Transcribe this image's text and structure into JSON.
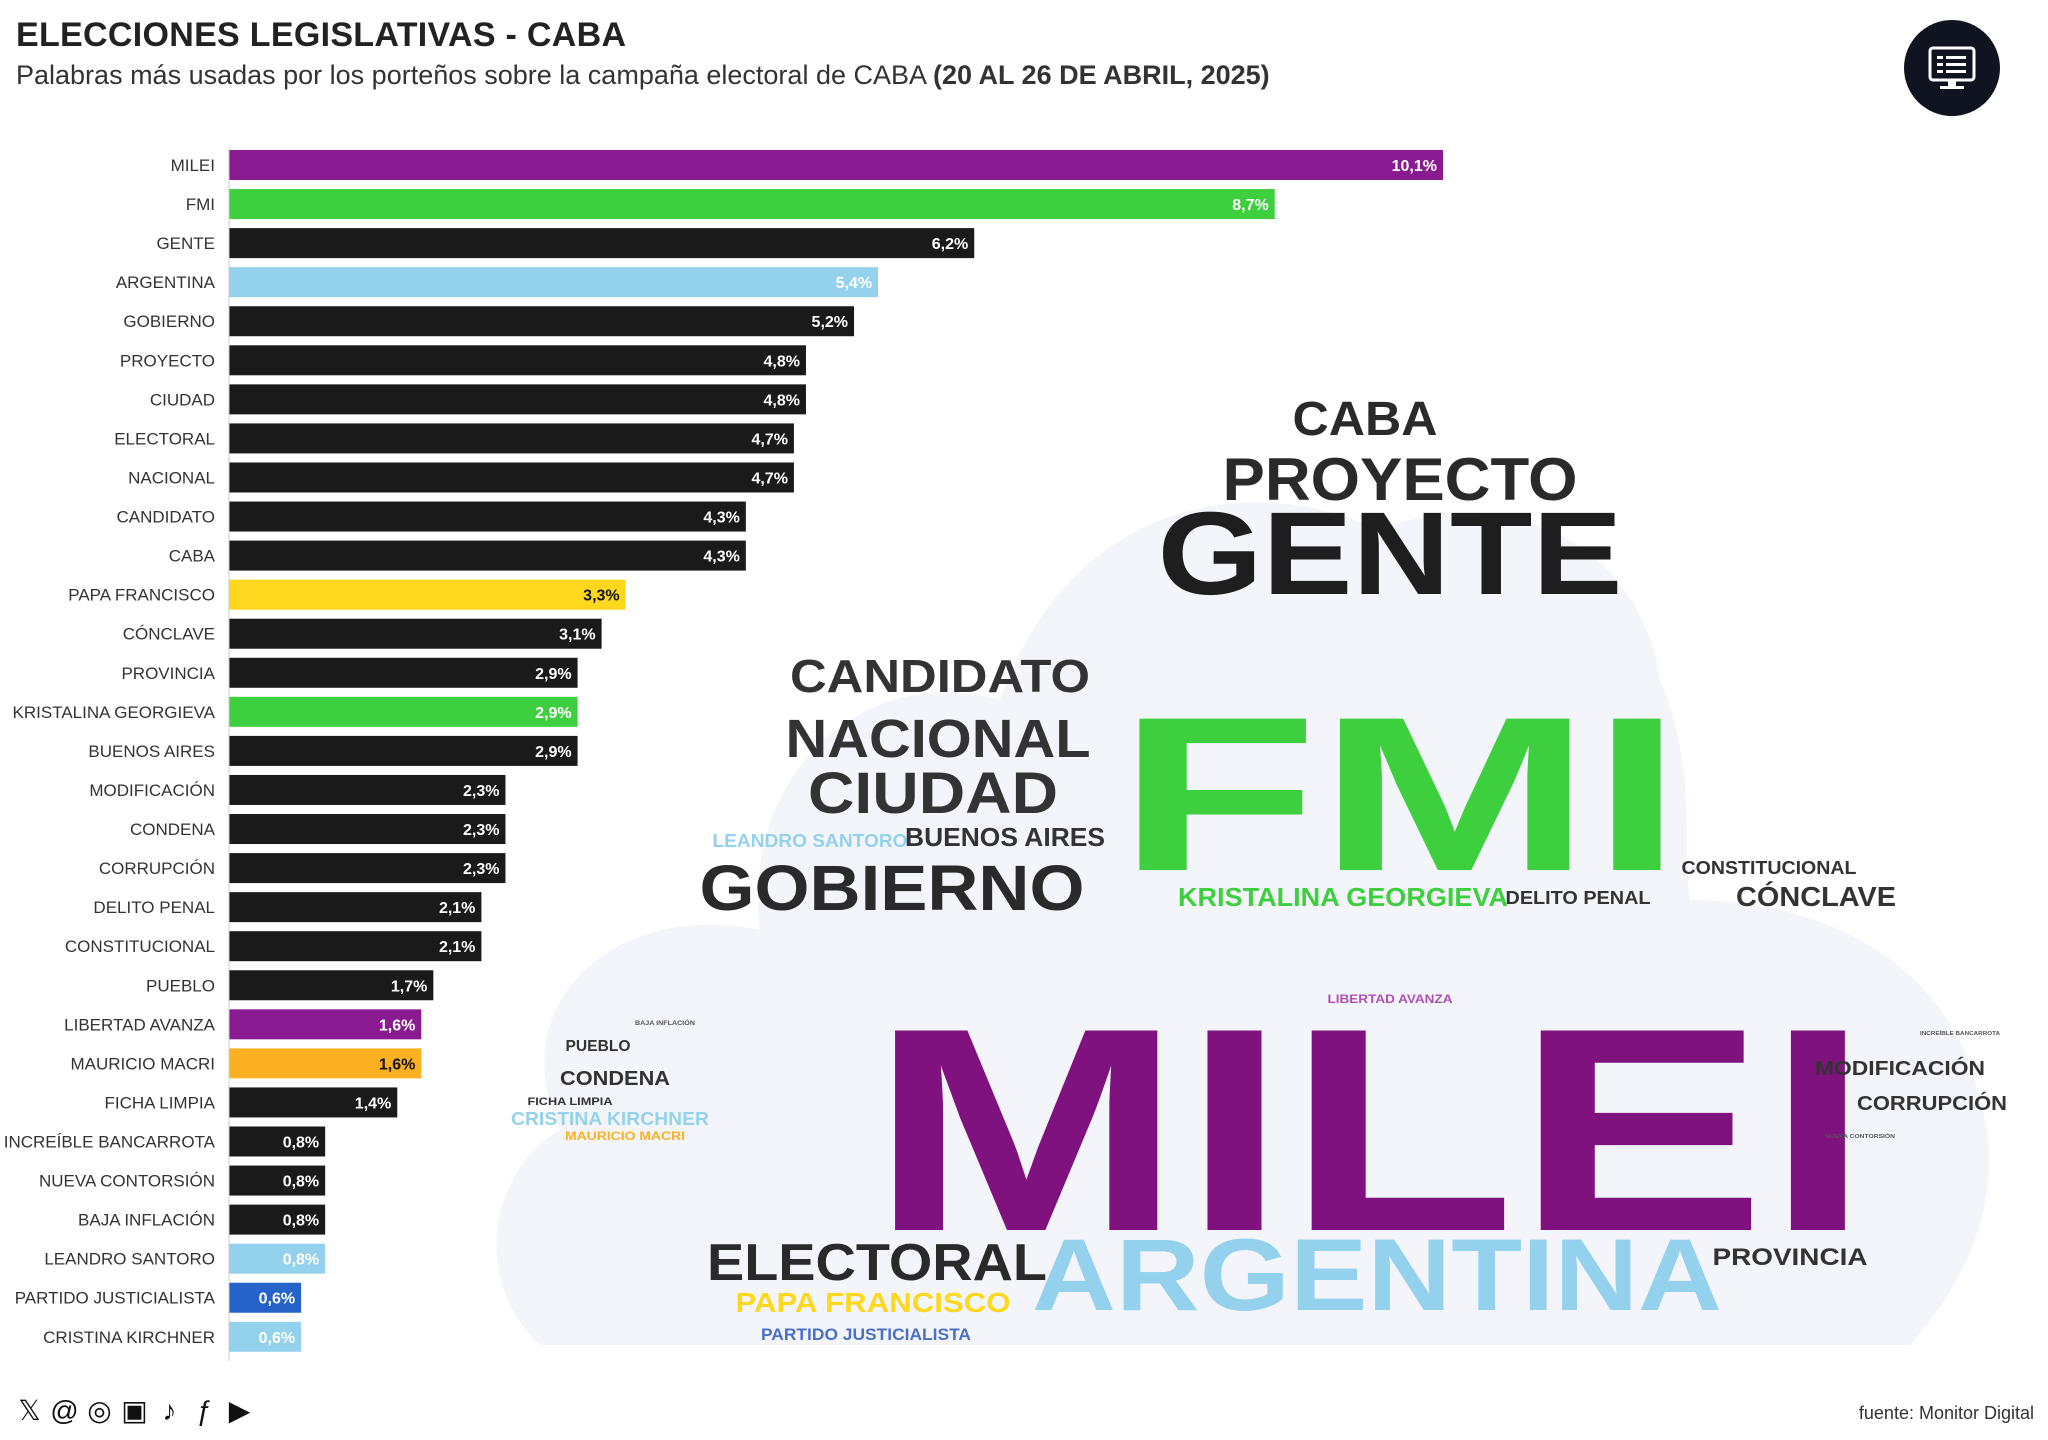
{
  "header": {
    "title": "ELECCIONES LEGISLATIVAS - CABA",
    "subtitle": "Palabras más usadas por los porteños sobre la campaña electoral de CABA",
    "subtitle_bold": "(20 AL 26 DE ABRIL, 2025)"
  },
  "logo": {
    "icon": "monitor-icon"
  },
  "footer": {
    "icons": [
      "x-icon",
      "threads-icon",
      "instagram-icon",
      "news-icon",
      "tiktok-icon",
      "facebook-icon",
      "youtube-icon"
    ],
    "source": "fuente: Monitor Digital"
  },
  "colors": {
    "purple": "#8a1a8f",
    "green": "#3ecf3e",
    "black": "#1a1a1a",
    "lightblue": "#93d1ec",
    "yellow": "#fdd81e",
    "orange": "#fbb022",
    "blue": "#2563c8"
  },
  "chart_data": {
    "type": "bar",
    "orientation": "horizontal",
    "categories": [
      "MILEI",
      "FMI",
      "GENTE",
      "ARGENTINA",
      "GOBIERNO",
      "PROYECTO",
      "CIUDAD",
      "ELECTORAL",
      "NACIONAL",
      "CANDIDATO",
      "CABA",
      "PAPA FRANCISCO",
      "CÓNCLAVE",
      "PROVINCIA",
      "KRISTALINA GEORGIEVA",
      "BUENOS AIRES",
      "MODIFICACIÓN",
      "CONDENA",
      "CORRUPCIÓN",
      "DELITO PENAL",
      "CONSTITUCIONAL",
      "PUEBLO",
      "LIBERTAD AVANZA",
      "MAURICIO MACRI",
      "FICHA LIMPIA",
      "INCREÍBLE BANCARROTA",
      "NUEVA CONTORSIÓN",
      "BAJA INFLACIÓN",
      "LEANDRO SANTORO",
      "PARTIDO JUSTICIALISTA",
      "CRISTINA KIRCHNER"
    ],
    "values": [
      10.1,
      8.7,
      6.2,
      5.4,
      5.2,
      4.8,
      4.8,
      4.7,
      4.7,
      4.3,
      4.3,
      3.3,
      3.1,
      2.9,
      2.9,
      2.9,
      2.3,
      2.3,
      2.3,
      2.1,
      2.1,
      1.7,
      1.6,
      1.6,
      1.4,
      0.8,
      0.8,
      0.8,
      0.8,
      0.6,
      0.6
    ],
    "labels": [
      "10,1%",
      "8,7%",
      "6,2%",
      "5,4%",
      "5,2%",
      "4,8%",
      "4,8%",
      "4,7%",
      "4,7%",
      "4,3%",
      "4,3%",
      "3,3%",
      "3,1%",
      "2,9%",
      "2,9%",
      "2,9%",
      "2,3%",
      "2,3%",
      "2,3%",
      "2,1%",
      "2,1%",
      "1,7%",
      "1,6%",
      "1,6%",
      "1,4%",
      "0,8%",
      "0,8%",
      "0,8%",
      "0,8%",
      "0,6%",
      "0,6%"
    ],
    "bar_colors": [
      "purple",
      "green",
      "black",
      "lightblue",
      "black",
      "black",
      "black",
      "black",
      "black",
      "black",
      "black",
      "yellow",
      "black",
      "black",
      "green",
      "black",
      "black",
      "black",
      "black",
      "black",
      "black",
      "black",
      "purple",
      "orange",
      "black",
      "black",
      "black",
      "black",
      "lightblue",
      "blue",
      "lightblue"
    ],
    "xlim": [
      0,
      10.1
    ]
  },
  "word_cloud": [
    {
      "text": "CABA",
      "color": "#2a2a2a"
    },
    {
      "text": "PROYECTO",
      "color": "#2a2a2a"
    },
    {
      "text": "GENTE",
      "color": "#1e1e1e"
    },
    {
      "text": "CANDIDATO",
      "color": "#333333"
    },
    {
      "text": "NACIONAL",
      "color": "#333333"
    },
    {
      "text": "CIUDAD",
      "color": "#333333"
    },
    {
      "text": "FMI",
      "color": "#3ecf3e"
    },
    {
      "text": "LEANDRO SANTORO",
      "color": "#93d1ec"
    },
    {
      "text": "BUENOS AIRES",
      "color": "#333333"
    },
    {
      "text": "GOBIERNO",
      "color": "#2a2a2a"
    },
    {
      "text": "CONSTITUCIONAL",
      "color": "#333333"
    },
    {
      "text": "KRISTALINA GEORGIEVA",
      "color": "#3ecf3e"
    },
    {
      "text": "DELITO PENAL",
      "color": "#333333"
    },
    {
      "text": "CÓNCLAVE",
      "color": "#333333"
    },
    {
      "text": "MILEI",
      "color": "#80127f"
    },
    {
      "text": "LIBERTAD AVANZA",
      "color": "#b050b0"
    },
    {
      "text": "BAJA INFLACIÓN",
      "color": "#555555"
    },
    {
      "text": "PUEBLO",
      "color": "#333333"
    },
    {
      "text": "CONDENA",
      "color": "#333333"
    },
    {
      "text": "FICHA LIMPIA",
      "color": "#333333"
    },
    {
      "text": "CRISTINA KIRCHNER",
      "color": "#93d1ec"
    },
    {
      "text": "MAURICIO MACRI",
      "color": "#fbb022"
    },
    {
      "text": "INCREÍBLE BANCARROTA",
      "color": "#555555"
    },
    {
      "text": "MODIFICACIÓN",
      "color": "#333333"
    },
    {
      "text": "CORRUPCIÓN",
      "color": "#333333"
    },
    {
      "text": "NUEVA CONTORSIÓN",
      "color": "#555555"
    },
    {
      "text": "ELECTORAL",
      "color": "#2a2a2a"
    },
    {
      "text": "ARGENTINA",
      "color": "#93d1ec"
    },
    {
      "text": "PROVINCIA",
      "color": "#333333"
    },
    {
      "text": "PAPA FRANCISCO",
      "color": "#fdd81e"
    },
    {
      "text": "PARTIDO JUSTICIALISTA",
      "color": "#4a6fc8"
    }
  ]
}
